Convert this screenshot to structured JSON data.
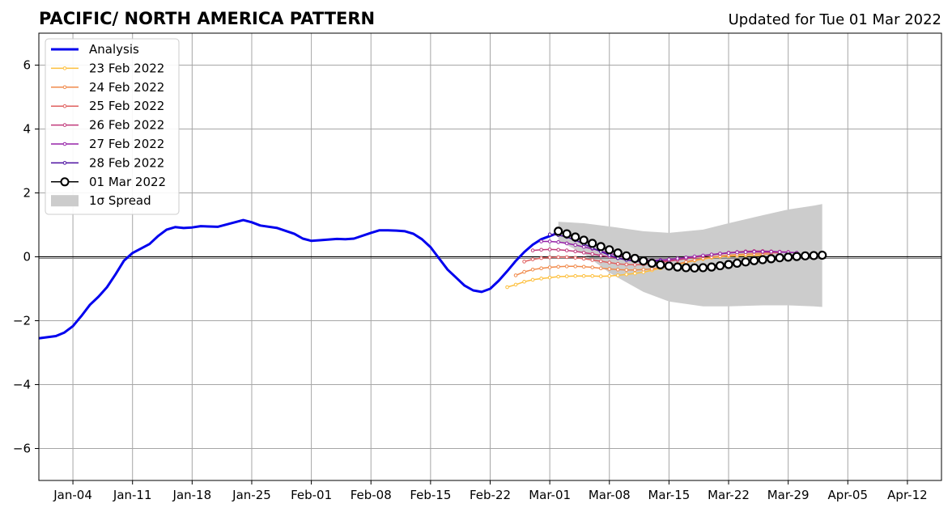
{
  "chart_data": {
    "type": "line",
    "title": "PACIFIC/ NORTH AMERICA PATTERN",
    "subtitle": "Updated for Tue 01 Mar 2022",
    "xlabel": "",
    "ylabel": "",
    "x_ticks": [
      "Jan-04",
      "Jan-11",
      "Jan-18",
      "Jan-25",
      "Feb-01",
      "Feb-08",
      "Feb-15",
      "Feb-22",
      "Mar-01",
      "Mar-08",
      "Mar-15",
      "Mar-22",
      "Mar-29",
      "Apr-05",
      "Apr-12"
    ],
    "y_ticks": [
      "−6",
      "−4",
      "−2",
      "0",
      "2",
      "4",
      "6"
    ],
    "xlim": [
      "2021-12-31",
      "2022-04-16"
    ],
    "ylim": [
      -7,
      7
    ],
    "grid": true,
    "legend_position": "top-left",
    "legend": [
      "Analysis",
      "23 Feb 2022",
      "24 Feb 2022",
      "25 Feb 2022",
      "26 Feb 2022",
      "27 Feb 2022",
      "28 Feb 2022",
      "01 Mar 2022",
      "1σ Spread"
    ],
    "spread": {
      "name": "1σ Spread",
      "color": "#cccccc",
      "x": [
        "2022-03-02",
        "2022-03-05",
        "2022-03-08",
        "2022-03-12",
        "2022-03-15",
        "2022-03-19",
        "2022-03-22",
        "2022-03-26",
        "2022-03-29",
        "2022-04-01",
        "2022-04-02"
      ],
      "upper": [
        1.1,
        1.05,
        0.95,
        0.8,
        0.75,
        0.85,
        1.05,
        1.3,
        1.48,
        1.6,
        1.65
      ],
      "lower": [
        0.5,
        0.1,
        -0.5,
        -1.1,
        -1.4,
        -1.55,
        -1.55,
        -1.52,
        -1.52,
        -1.55,
        -1.57
      ]
    },
    "series": [
      {
        "name": "Analysis",
        "color": "#0000ee",
        "x": [
          "2021-12-31",
          "2022-01-02",
          "2022-01-03",
          "2022-01-04",
          "2022-01-05",
          "2022-01-06",
          "2022-01-07",
          "2022-01-08",
          "2022-01-09",
          "2022-01-10",
          "2022-01-11",
          "2022-01-13",
          "2022-01-14",
          "2022-01-15",
          "2022-01-16",
          "2022-01-17",
          "2022-01-18",
          "2022-01-19",
          "2022-01-21",
          "2022-01-24",
          "2022-01-25",
          "2022-01-26",
          "2022-01-28",
          "2022-01-30",
          "2022-01-31",
          "2022-02-01",
          "2022-02-02",
          "2022-02-04",
          "2022-02-05",
          "2022-02-06",
          "2022-02-08",
          "2022-02-09",
          "2022-02-10",
          "2022-02-11",
          "2022-02-12",
          "2022-02-13",
          "2022-02-14",
          "2022-02-15",
          "2022-02-16",
          "2022-02-17",
          "2022-02-18",
          "2022-02-19",
          "2022-02-20",
          "2022-02-21",
          "2022-02-22",
          "2022-02-23",
          "2022-02-24",
          "2022-02-25",
          "2022-02-26",
          "2022-02-27",
          "2022-02-28",
          "2022-03-01",
          "2022-03-02"
        ],
        "values": [
          -2.55,
          -2.48,
          -2.37,
          -2.17,
          -1.85,
          -1.5,
          -1.25,
          -0.95,
          -0.55,
          -0.12,
          0.12,
          0.4,
          0.65,
          0.85,
          0.93,
          0.9,
          0.92,
          0.96,
          0.94,
          1.15,
          1.08,
          0.98,
          0.9,
          0.72,
          0.57,
          0.5,
          0.52,
          0.56,
          0.55,
          0.57,
          0.75,
          0.83,
          0.83,
          0.82,
          0.8,
          0.72,
          0.55,
          0.3,
          -0.05,
          -0.4,
          -0.65,
          -0.9,
          -1.05,
          -1.1,
          -1.0,
          -0.75,
          -0.45,
          -0.13,
          0.15,
          0.38,
          0.55,
          0.65,
          0.75
        ]
      },
      {
        "name": "23 Feb 2022",
        "color": "#fdbf3c",
        "x": [
          "2022-02-24",
          "2022-02-25",
          "2022-02-26",
          "2022-02-27",
          "2022-02-28",
          "2022-03-01",
          "2022-03-02",
          "2022-03-03",
          "2022-03-04",
          "2022-03-05",
          "2022-03-06",
          "2022-03-07",
          "2022-03-08",
          "2022-03-09",
          "2022-03-10",
          "2022-03-11",
          "2022-03-12",
          "2022-03-13",
          "2022-03-14",
          "2022-03-15",
          "2022-03-16",
          "2022-03-17",
          "2022-03-18",
          "2022-03-19",
          "2022-03-20",
          "2022-03-21",
          "2022-03-22",
          "2022-03-23",
          "2022-03-24",
          "2022-03-25",
          "2022-03-26"
        ],
        "values": [
          -0.95,
          -0.87,
          -0.78,
          -0.72,
          -0.68,
          -0.65,
          -0.62,
          -0.61,
          -0.6,
          -0.6,
          -0.6,
          -0.61,
          -0.6,
          -0.58,
          -0.55,
          -0.52,
          -0.48,
          -0.42,
          -0.36,
          -0.3,
          -0.24,
          -0.18,
          -0.12,
          -0.07,
          -0.03,
          0.0,
          0.02,
          0.03,
          0.04,
          0.04,
          0.05
        ]
      },
      {
        "name": "24 Feb 2022",
        "color": "#f08a4b",
        "x": [
          "2022-02-25",
          "2022-02-26",
          "2022-02-27",
          "2022-02-28",
          "2022-03-01",
          "2022-03-02",
          "2022-03-03",
          "2022-03-04",
          "2022-03-05",
          "2022-03-06",
          "2022-03-07",
          "2022-03-08",
          "2022-03-09",
          "2022-03-10",
          "2022-03-11",
          "2022-03-12",
          "2022-03-13",
          "2022-03-14",
          "2022-03-15",
          "2022-03-16",
          "2022-03-17",
          "2022-03-18",
          "2022-03-19",
          "2022-03-20",
          "2022-03-21",
          "2022-03-22",
          "2022-03-23",
          "2022-03-24",
          "2022-03-25",
          "2022-03-26",
          "2022-03-27"
        ],
        "values": [
          -0.58,
          -0.47,
          -0.4,
          -0.36,
          -0.33,
          -0.31,
          -0.3,
          -0.3,
          -0.31,
          -0.33,
          -0.36,
          -0.38,
          -0.4,
          -0.41,
          -0.41,
          -0.4,
          -0.38,
          -0.33,
          -0.28,
          -0.22,
          -0.16,
          -0.1,
          -0.05,
          -0.01,
          0.02,
          0.05,
          0.07,
          0.08,
          0.09,
          0.09,
          0.08
        ]
      },
      {
        "name": "25 Feb 2022",
        "color": "#e0605f",
        "x": [
          "2022-02-26",
          "2022-02-27",
          "2022-02-28",
          "2022-03-01",
          "2022-03-02",
          "2022-03-03",
          "2022-03-04",
          "2022-03-05",
          "2022-03-06",
          "2022-03-07",
          "2022-03-08",
          "2022-03-09",
          "2022-03-10",
          "2022-03-11",
          "2022-03-12",
          "2022-03-13",
          "2022-03-14",
          "2022-03-15",
          "2022-03-16",
          "2022-03-17",
          "2022-03-18",
          "2022-03-19",
          "2022-03-20",
          "2022-03-21",
          "2022-03-22",
          "2022-03-23",
          "2022-03-24",
          "2022-03-25",
          "2022-03-26",
          "2022-03-27",
          "2022-03-28"
        ],
        "values": [
          -0.15,
          -0.08,
          -0.04,
          -0.02,
          -0.01,
          -0.01,
          -0.03,
          -0.06,
          -0.1,
          -0.14,
          -0.18,
          -0.22,
          -0.24,
          -0.25,
          -0.24,
          -0.22,
          -0.18,
          -0.14,
          -0.1,
          -0.06,
          -0.02,
          0.02,
          0.06,
          0.09,
          0.12,
          0.14,
          0.15,
          0.15,
          0.14,
          0.13,
          0.12
        ]
      },
      {
        "name": "26 Feb 2022",
        "color": "#c0397a",
        "x": [
          "2022-02-27",
          "2022-02-28",
          "2022-03-01",
          "2022-03-02",
          "2022-03-03",
          "2022-03-04",
          "2022-03-05",
          "2022-03-06",
          "2022-03-07",
          "2022-03-08",
          "2022-03-09",
          "2022-03-10",
          "2022-03-11",
          "2022-03-12",
          "2022-03-13",
          "2022-03-14",
          "2022-03-15",
          "2022-03-16",
          "2022-03-17",
          "2022-03-18",
          "2022-03-19",
          "2022-03-20",
          "2022-03-21",
          "2022-03-22",
          "2022-03-23",
          "2022-03-24",
          "2022-03-25",
          "2022-03-26",
          "2022-03-27",
          "2022-03-28",
          "2022-03-29"
        ],
        "values": [
          0.2,
          0.22,
          0.23,
          0.22,
          0.2,
          0.17,
          0.13,
          0.09,
          0.04,
          0.0,
          -0.04,
          -0.08,
          -0.11,
          -0.13,
          -0.14,
          -0.14,
          -0.12,
          -0.09,
          -0.05,
          -0.01,
          0.03,
          0.07,
          0.1,
          0.13,
          0.15,
          0.17,
          0.18,
          0.18,
          0.17,
          0.16,
          0.15
        ]
      },
      {
        "name": "27 Feb 2022",
        "color": "#9623a8",
        "x": [
          "2022-02-28",
          "2022-03-01",
          "2022-03-02",
          "2022-03-03",
          "2022-03-04",
          "2022-03-05",
          "2022-03-06",
          "2022-03-07",
          "2022-03-08",
          "2022-03-09",
          "2022-03-10",
          "2022-03-11",
          "2022-03-12",
          "2022-03-13",
          "2022-03-14",
          "2022-03-15",
          "2022-03-16",
          "2022-03-17",
          "2022-03-18",
          "2022-03-19",
          "2022-03-20",
          "2022-03-21",
          "2022-03-22",
          "2022-03-23",
          "2022-03-24",
          "2022-03-25",
          "2022-03-26",
          "2022-03-27",
          "2022-03-28",
          "2022-03-29",
          "2022-03-30"
        ],
        "values": [
          0.48,
          0.48,
          0.46,
          0.42,
          0.37,
          0.31,
          0.25,
          0.18,
          0.11,
          0.04,
          -0.02,
          -0.07,
          -0.1,
          -0.11,
          -0.1,
          -0.08,
          -0.05,
          -0.02,
          0.01,
          0.04,
          0.07,
          0.1,
          0.12,
          0.14,
          0.15,
          0.16,
          0.16,
          0.16,
          0.15,
          0.14,
          0.13
        ]
      },
      {
        "name": "28 Feb 2022",
        "color": "#4b0fa0",
        "x": [
          "2022-03-01",
          "2022-03-02",
          "2022-03-03",
          "2022-03-04",
          "2022-03-05",
          "2022-03-06",
          "2022-03-07",
          "2022-03-08",
          "2022-03-09",
          "2022-03-10",
          "2022-03-11",
          "2022-03-12",
          "2022-03-13",
          "2022-03-14"
        ],
        "values": [
          0.7,
          0.68,
          0.62,
          0.52,
          0.4,
          0.28,
          0.16,
          0.05,
          -0.04,
          -0.1,
          -0.14,
          -0.15,
          -0.14,
          -0.12
        ]
      },
      {
        "name": "01 Mar 2022",
        "color": "#000000",
        "x": [
          "2022-03-02",
          "2022-03-03",
          "2022-03-04",
          "2022-03-05",
          "2022-03-06",
          "2022-03-07",
          "2022-03-08",
          "2022-03-09",
          "2022-03-10",
          "2022-03-11",
          "2022-03-12",
          "2022-03-13",
          "2022-03-14",
          "2022-03-15",
          "2022-03-16",
          "2022-03-17",
          "2022-03-18",
          "2022-03-19",
          "2022-03-20",
          "2022-03-21",
          "2022-03-22",
          "2022-03-23",
          "2022-03-24",
          "2022-03-25",
          "2022-03-26",
          "2022-03-27",
          "2022-03-28",
          "2022-03-29",
          "2022-03-30",
          "2022-03-31",
          "2022-04-01",
          "2022-04-02"
        ],
        "values": [
          0.8,
          0.72,
          0.62,
          0.52,
          0.42,
          0.32,
          0.22,
          0.12,
          0.03,
          -0.05,
          -0.13,
          -0.2,
          -0.25,
          -0.29,
          -0.32,
          -0.34,
          -0.35,
          -0.34,
          -0.32,
          -0.28,
          -0.24,
          -0.2,
          -0.16,
          -0.12,
          -0.09,
          -0.06,
          -0.03,
          -0.01,
          0.01,
          0.03,
          0.04,
          0.05
        ]
      }
    ]
  }
}
